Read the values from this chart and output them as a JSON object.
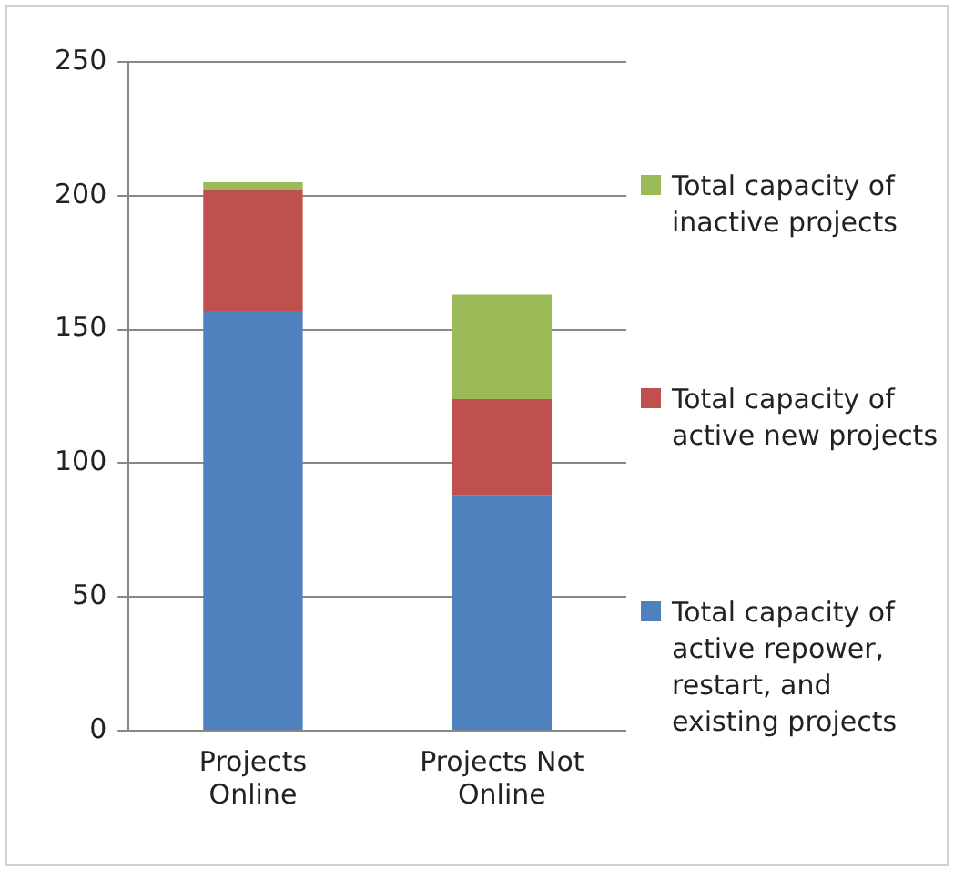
{
  "chart_data": {
    "type": "bar",
    "stacked": true,
    "categories": [
      "Projects Online",
      "Projects Not Online"
    ],
    "series": [
      {
        "name": "Total capacity of active repower, restart, and existing projects",
        "color": "#4f81bd",
        "values": [
          157,
          88
        ]
      },
      {
        "name": "Total capacity of active new projects",
        "color": "#c0504d",
        "values": [
          45,
          36
        ]
      },
      {
        "name": "Total capacity of inactive projects",
        "color": "#9bbb59",
        "values": [
          3,
          39
        ]
      }
    ],
    "ylim": [
      0,
      250
    ],
    "yticks": [
      0,
      50,
      100,
      150,
      200,
      250
    ],
    "grid": "y",
    "legend": "right"
  }
}
